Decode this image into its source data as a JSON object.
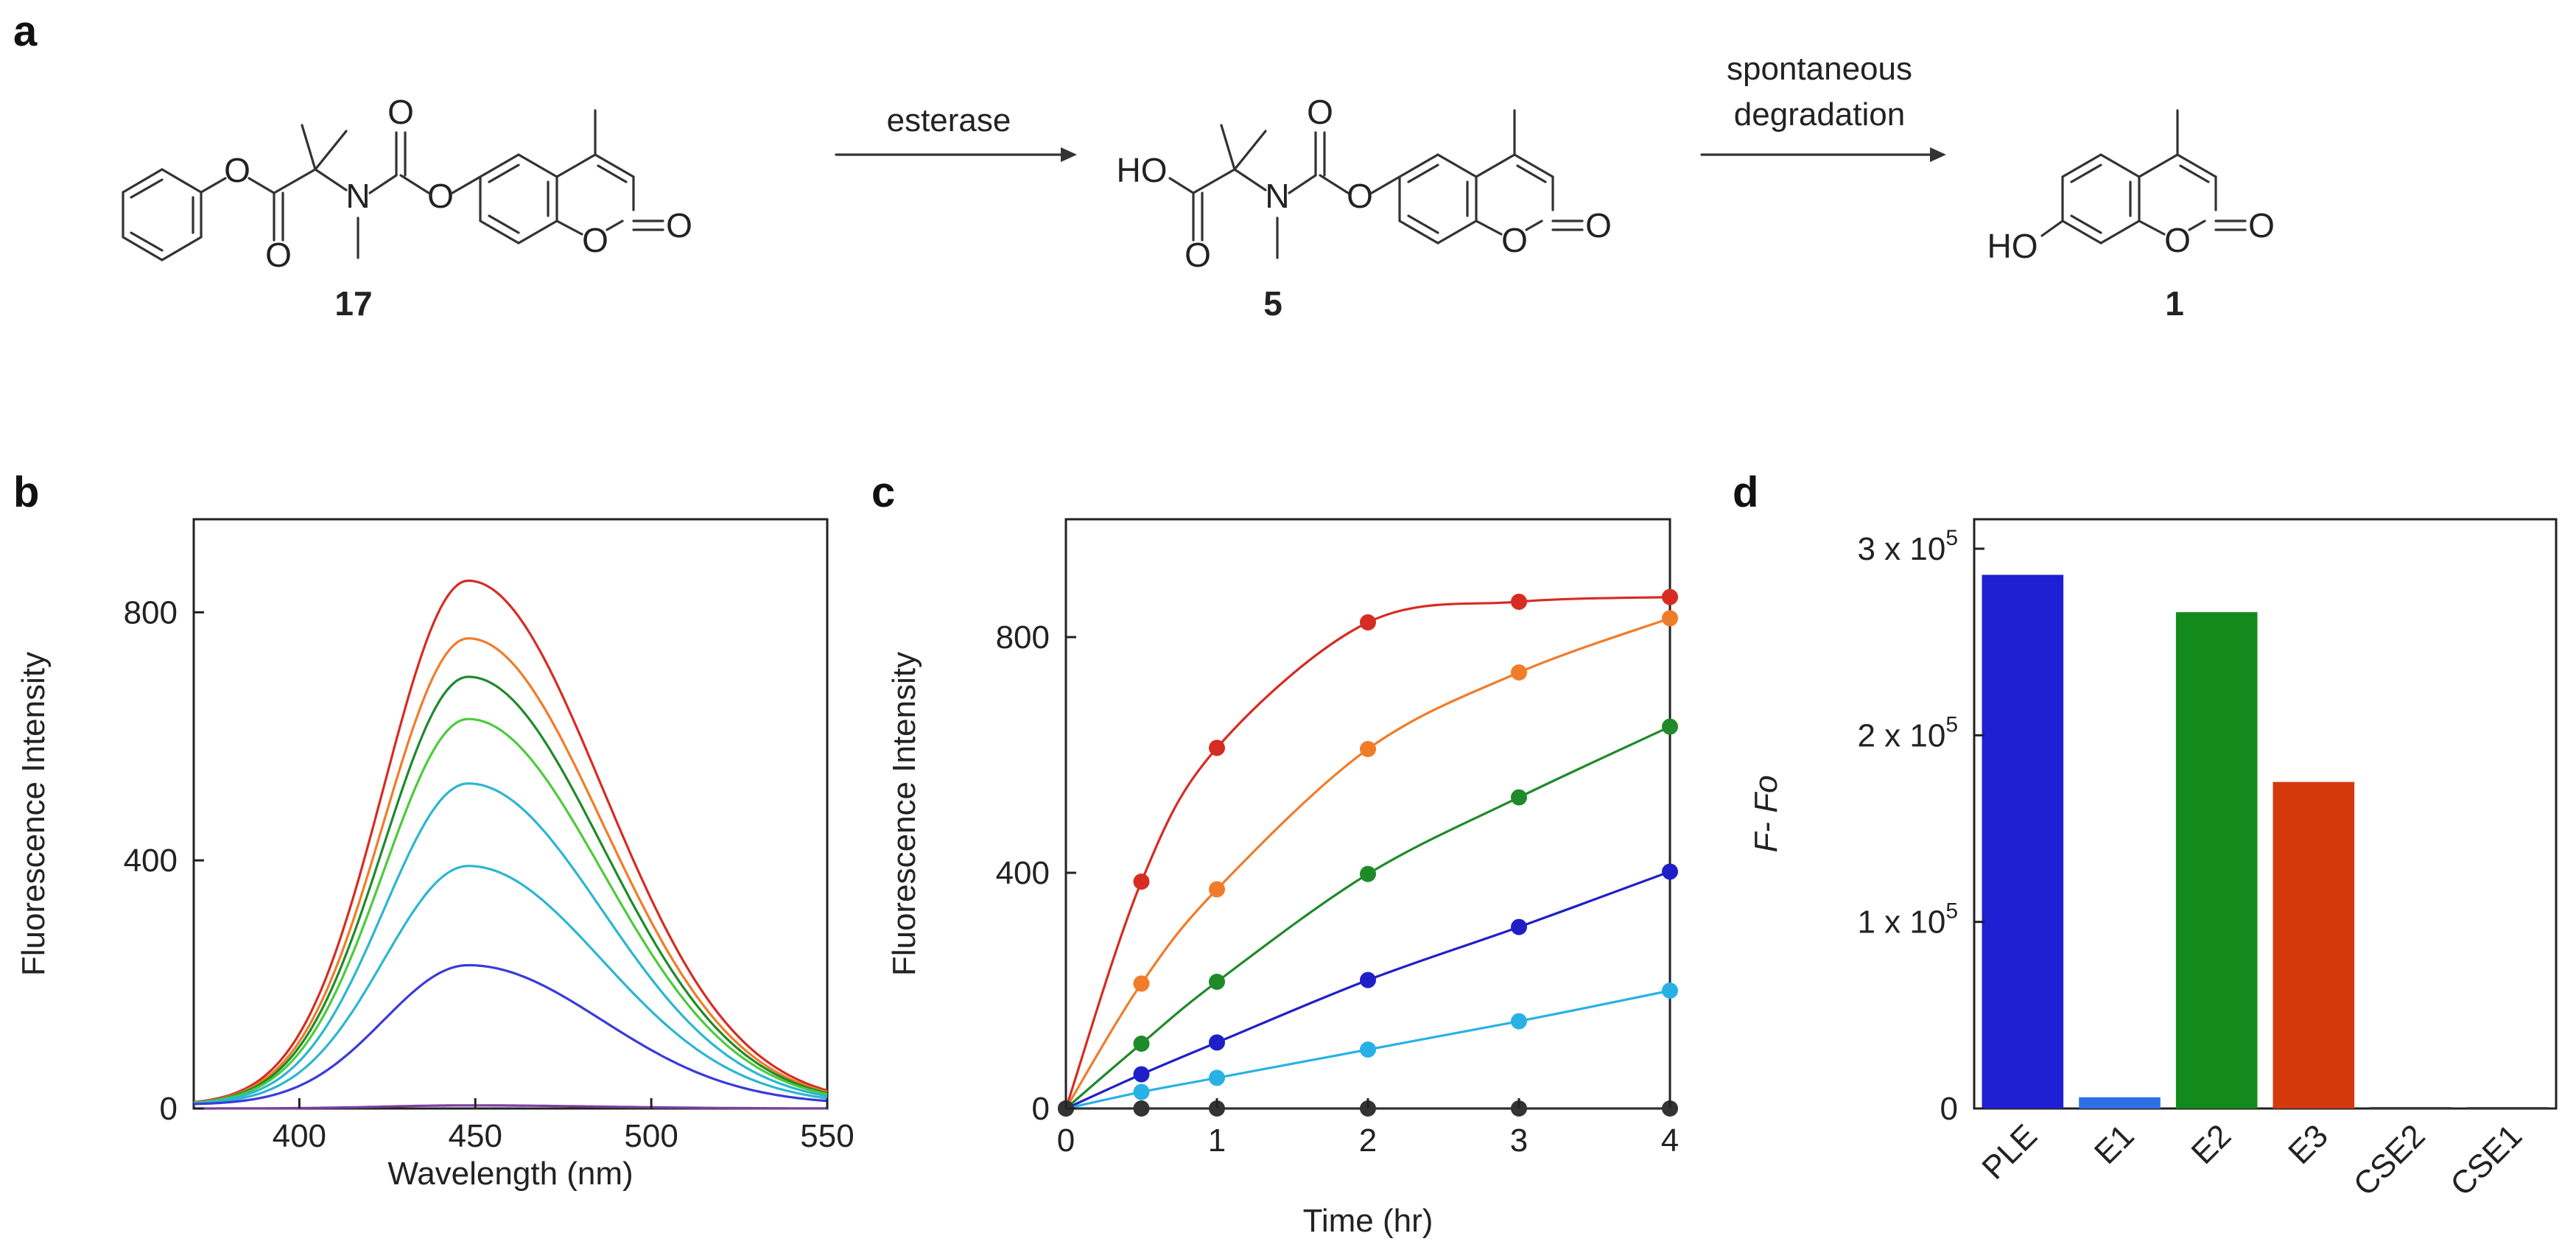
{
  "panel_labels": {
    "a": "a",
    "b": "b",
    "c": "c",
    "d": "d"
  },
  "scheme": {
    "compounds": [
      {
        "id": "17"
      },
      {
        "id": "5"
      },
      {
        "id": "1"
      }
    ],
    "atoms": {
      "O": "O",
      "N": "N",
      "HO": "HO"
    },
    "arrows": [
      {
        "lines": [
          "esterase"
        ]
      },
      {
        "lines": [
          "spontaneous",
          "degradation"
        ]
      }
    ]
  },
  "colors": {
    "red": "#d62c22",
    "orange": "#f07c28",
    "green": "#1f8a2a",
    "light_green": "#4ccb3c",
    "lime": "#86e26a",
    "cyan": "#2cb6d0",
    "blue": "#3a3adc",
    "purple": "#7a3fa0",
    "navy": "#1f1fc8",
    "sky": "#29b1e6",
    "gray": "#333333"
  },
  "chart_data": [
    {
      "panel": "b",
      "type": "line",
      "xlabel": "Wavelength (nm)",
      "ylabel": "Fluorescence Intensity",
      "xlim": [
        370,
        550
      ],
      "ylim": [
        0,
        950
      ],
      "xticks": [
        400,
        450,
        500,
        550
      ],
      "yticks": [
        0,
        400,
        800
      ],
      "peak_x": 448,
      "series": [
        {
          "peak": 845,
          "color": "#d62c22"
        },
        {
          "peak": 752,
          "color": "#f07c28"
        },
        {
          "peak": 690,
          "color": "#1f8a2a"
        },
        {
          "peak": 622,
          "color": "#4ccb3c"
        },
        {
          "peak": 518,
          "color": "#2cb6d0"
        },
        {
          "peak": 385,
          "color": "#2cb6d0"
        },
        {
          "peak": 225,
          "color": "#3a3adc"
        },
        {
          "peak": 5,
          "color": "#7a3fa0"
        }
      ]
    },
    {
      "panel": "c",
      "type": "line",
      "xlabel": "Time (hr)",
      "ylabel": "Fluorescence Intensity",
      "xlim": [
        0,
        4
      ],
      "ylim": [
        0,
        1000
      ],
      "xticks": [
        0,
        1,
        2,
        3,
        4
      ],
      "yticks": [
        0,
        400,
        800
      ],
      "x": [
        0,
        0.5,
        1,
        2,
        3,
        4
      ],
      "series": [
        {
          "color": "#d62c22",
          "values": [
            0,
            385,
            612,
            825,
            860,
            868
          ]
        },
        {
          "color": "#f07c28",
          "values": [
            0,
            212,
            372,
            610,
            740,
            832
          ]
        },
        {
          "color": "#1f8a2a",
          "values": [
            0,
            110,
            215,
            398,
            528,
            648
          ]
        },
        {
          "color": "#1f1fc8",
          "values": [
            0,
            58,
            112,
            218,
            308,
            402
          ]
        },
        {
          "color": "#29b1e6",
          "values": [
            0,
            28,
            52,
            100,
            148,
            200
          ]
        },
        {
          "color": "#333333",
          "values": [
            0,
            0,
            0,
            0,
            0,
            0
          ]
        }
      ]
    },
    {
      "panel": "d",
      "type": "bar",
      "ylabel": "F- Fo",
      "ylim": [
        0,
        300000
      ],
      "yticks": [
        {
          "value": 0,
          "label": "0"
        },
        {
          "value": 100000,
          "label": "1 x 10",
          "exp": "5"
        },
        {
          "value": 200000,
          "label": "2 x 10",
          "exp": "5"
        },
        {
          "value": 300000,
          "label": "3 x 10",
          "exp": "5"
        }
      ],
      "categories": [
        "PLE",
        "E1",
        "E2",
        "E3",
        "CSE2",
        "CSE1"
      ],
      "values": [
        286000,
        6000,
        266000,
        175000,
        800,
        500
      ],
      "bar_colors": [
        "#1e1ed2",
        "#2f6fe6",
        "#138a1c",
        "#d6380e",
        "#444444",
        "#444444"
      ]
    }
  ]
}
